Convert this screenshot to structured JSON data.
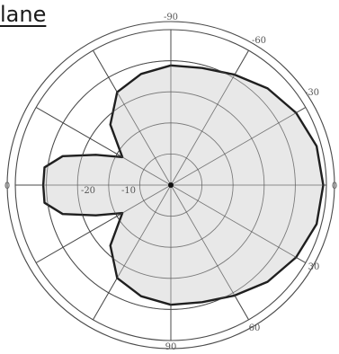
{
  "title": "lane",
  "chart_data": {
    "type": "polar",
    "title": "lane",
    "angle_tick_labels": [
      "-90",
      "-60",
      "-30",
      "0",
      "30",
      "60",
      "90",
      "0"
    ],
    "radial_tick_labels": [
      "-20",
      "-10"
    ],
    "radial_rings": 5,
    "radial_spokes": 12,
    "grid": true,
    "fill_color": "#e4e4e4",
    "line_color": "#1f1f1f",
    "grid_color": "#4a4a4a",
    "series": [
      {
        "values": [
          {
            "angle": 0,
            "r": 0.98
          },
          {
            "angle": 15,
            "r": 0.97
          },
          {
            "angle": 30,
            "r": 0.93
          },
          {
            "angle": 45,
            "r": 0.88
          },
          {
            "angle": 60,
            "r": 0.82
          },
          {
            "angle": 75,
            "r": 0.78
          },
          {
            "angle": 90,
            "r": 0.77
          },
          {
            "angle": 105,
            "r": 0.74
          },
          {
            "angle": 120,
            "r": 0.69
          },
          {
            "angle": 135,
            "r": 0.55
          },
          {
            "angle": 150,
            "r": 0.36
          },
          {
            "angle": 158,
            "r": 0.52
          },
          {
            "angle": 165,
            "r": 0.72
          },
          {
            "angle": 172,
            "r": 0.82
          },
          {
            "angle": 180,
            "r": 0.82
          },
          {
            "angle": 188,
            "r": 0.82
          },
          {
            "angle": 195,
            "r": 0.72
          },
          {
            "angle": 202,
            "r": 0.52
          },
          {
            "angle": 210,
            "r": 0.36
          },
          {
            "angle": 225,
            "r": 0.55
          },
          {
            "angle": 240,
            "r": 0.69
          },
          {
            "angle": 255,
            "r": 0.74
          },
          {
            "angle": 270,
            "r": 0.77
          },
          {
            "angle": 285,
            "r": 0.78
          },
          {
            "angle": 300,
            "r": 0.82
          },
          {
            "angle": 315,
            "r": 0.88
          },
          {
            "angle": 330,
            "r": 0.93
          },
          {
            "angle": 345,
            "r": 0.97
          }
        ]
      }
    ]
  }
}
